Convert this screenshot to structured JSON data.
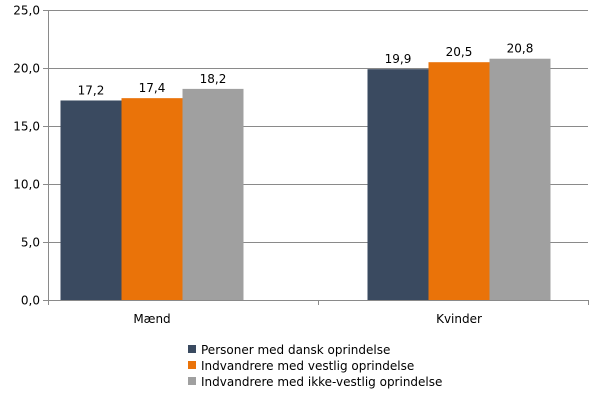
{
  "chart_data": {
    "type": "bar",
    "categories": [
      "Mænd",
      "Kvinder"
    ],
    "series": [
      {
        "name": "Personer med dansk oprindelse",
        "values": [
          17.2,
          19.9
        ],
        "labels": [
          "17,2",
          "19,9"
        ],
        "color": "#3a4a60"
      },
      {
        "name": "Indvandrere med vestlig oprindelse",
        "values": [
          17.4,
          20.5
        ],
        "labels": [
          "17,4",
          "20,5"
        ],
        "color": "#ea7309"
      },
      {
        "name": "Indvandrere med ikke-vestlig oprindelse",
        "values": [
          18.2,
          20.8
        ],
        "labels": [
          "18,2",
          "20,8"
        ],
        "color": "#a0a0a0"
      }
    ],
    "ylim": [
      0,
      25
    ],
    "yticks": [
      0,
      5,
      10,
      15,
      20,
      25
    ],
    "ytick_labels": [
      "0,0",
      "5,0",
      "10,0",
      "15,0",
      "20,0",
      "25,0"
    ],
    "grid": true,
    "legend_position": "bottom"
  }
}
